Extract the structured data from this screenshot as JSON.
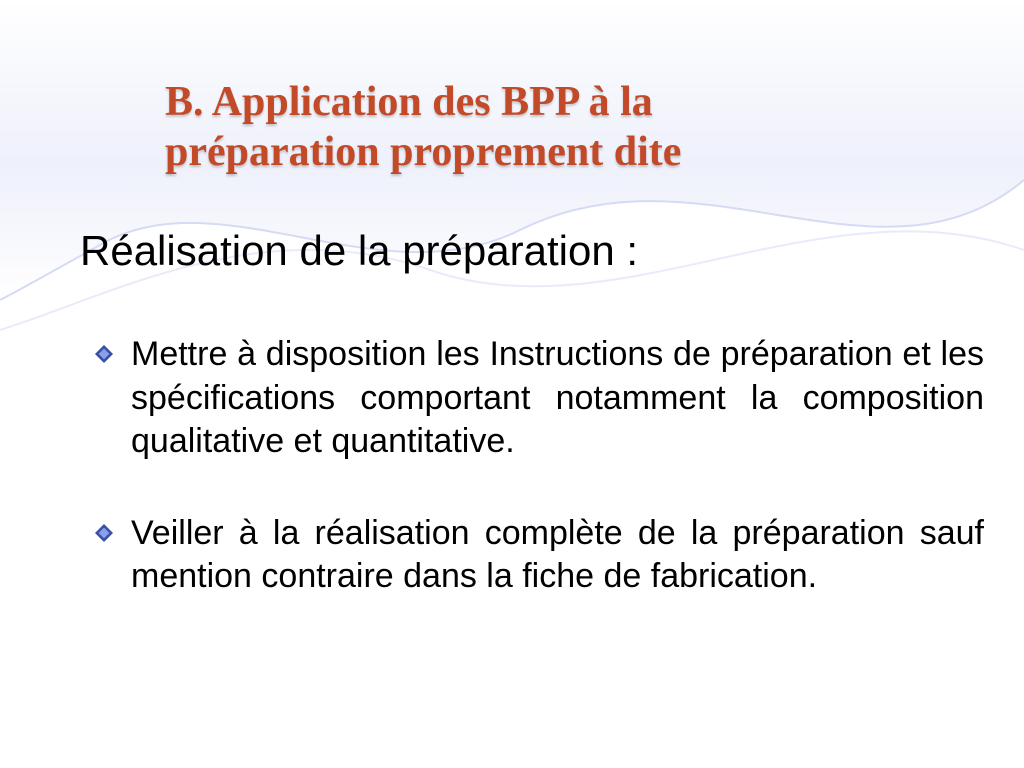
{
  "heading": {
    "line1": "B. Application des  BPP   à la",
    "line2": "préparation proprement dite",
    "color": "#c24a29",
    "fontsize": 42
  },
  "subheading": {
    "text": "Réalisation de la préparation :",
    "color": "#000000",
    "fontsize": 42
  },
  "bullets": {
    "items": [
      {
        "text": "Mettre à disposition les Instructions de préparation et les spécifications comportant notamment la composition qualitative et quantitative."
      },
      {
        "text": "Veiller à la réalisation complète de la préparation sauf mention contraire dans la fiche de fabrication."
      }
    ],
    "fontsize": 34,
    "color": "#000000",
    "icon_outer_color": "#3a4fa8",
    "icon_inner_color": "#8aa0e8",
    "icon_size": 18
  },
  "background": {
    "wave_fill": "#e6e9f8",
    "wave_stroke": "#c6cef2",
    "page_bg": "#ffffff"
  }
}
